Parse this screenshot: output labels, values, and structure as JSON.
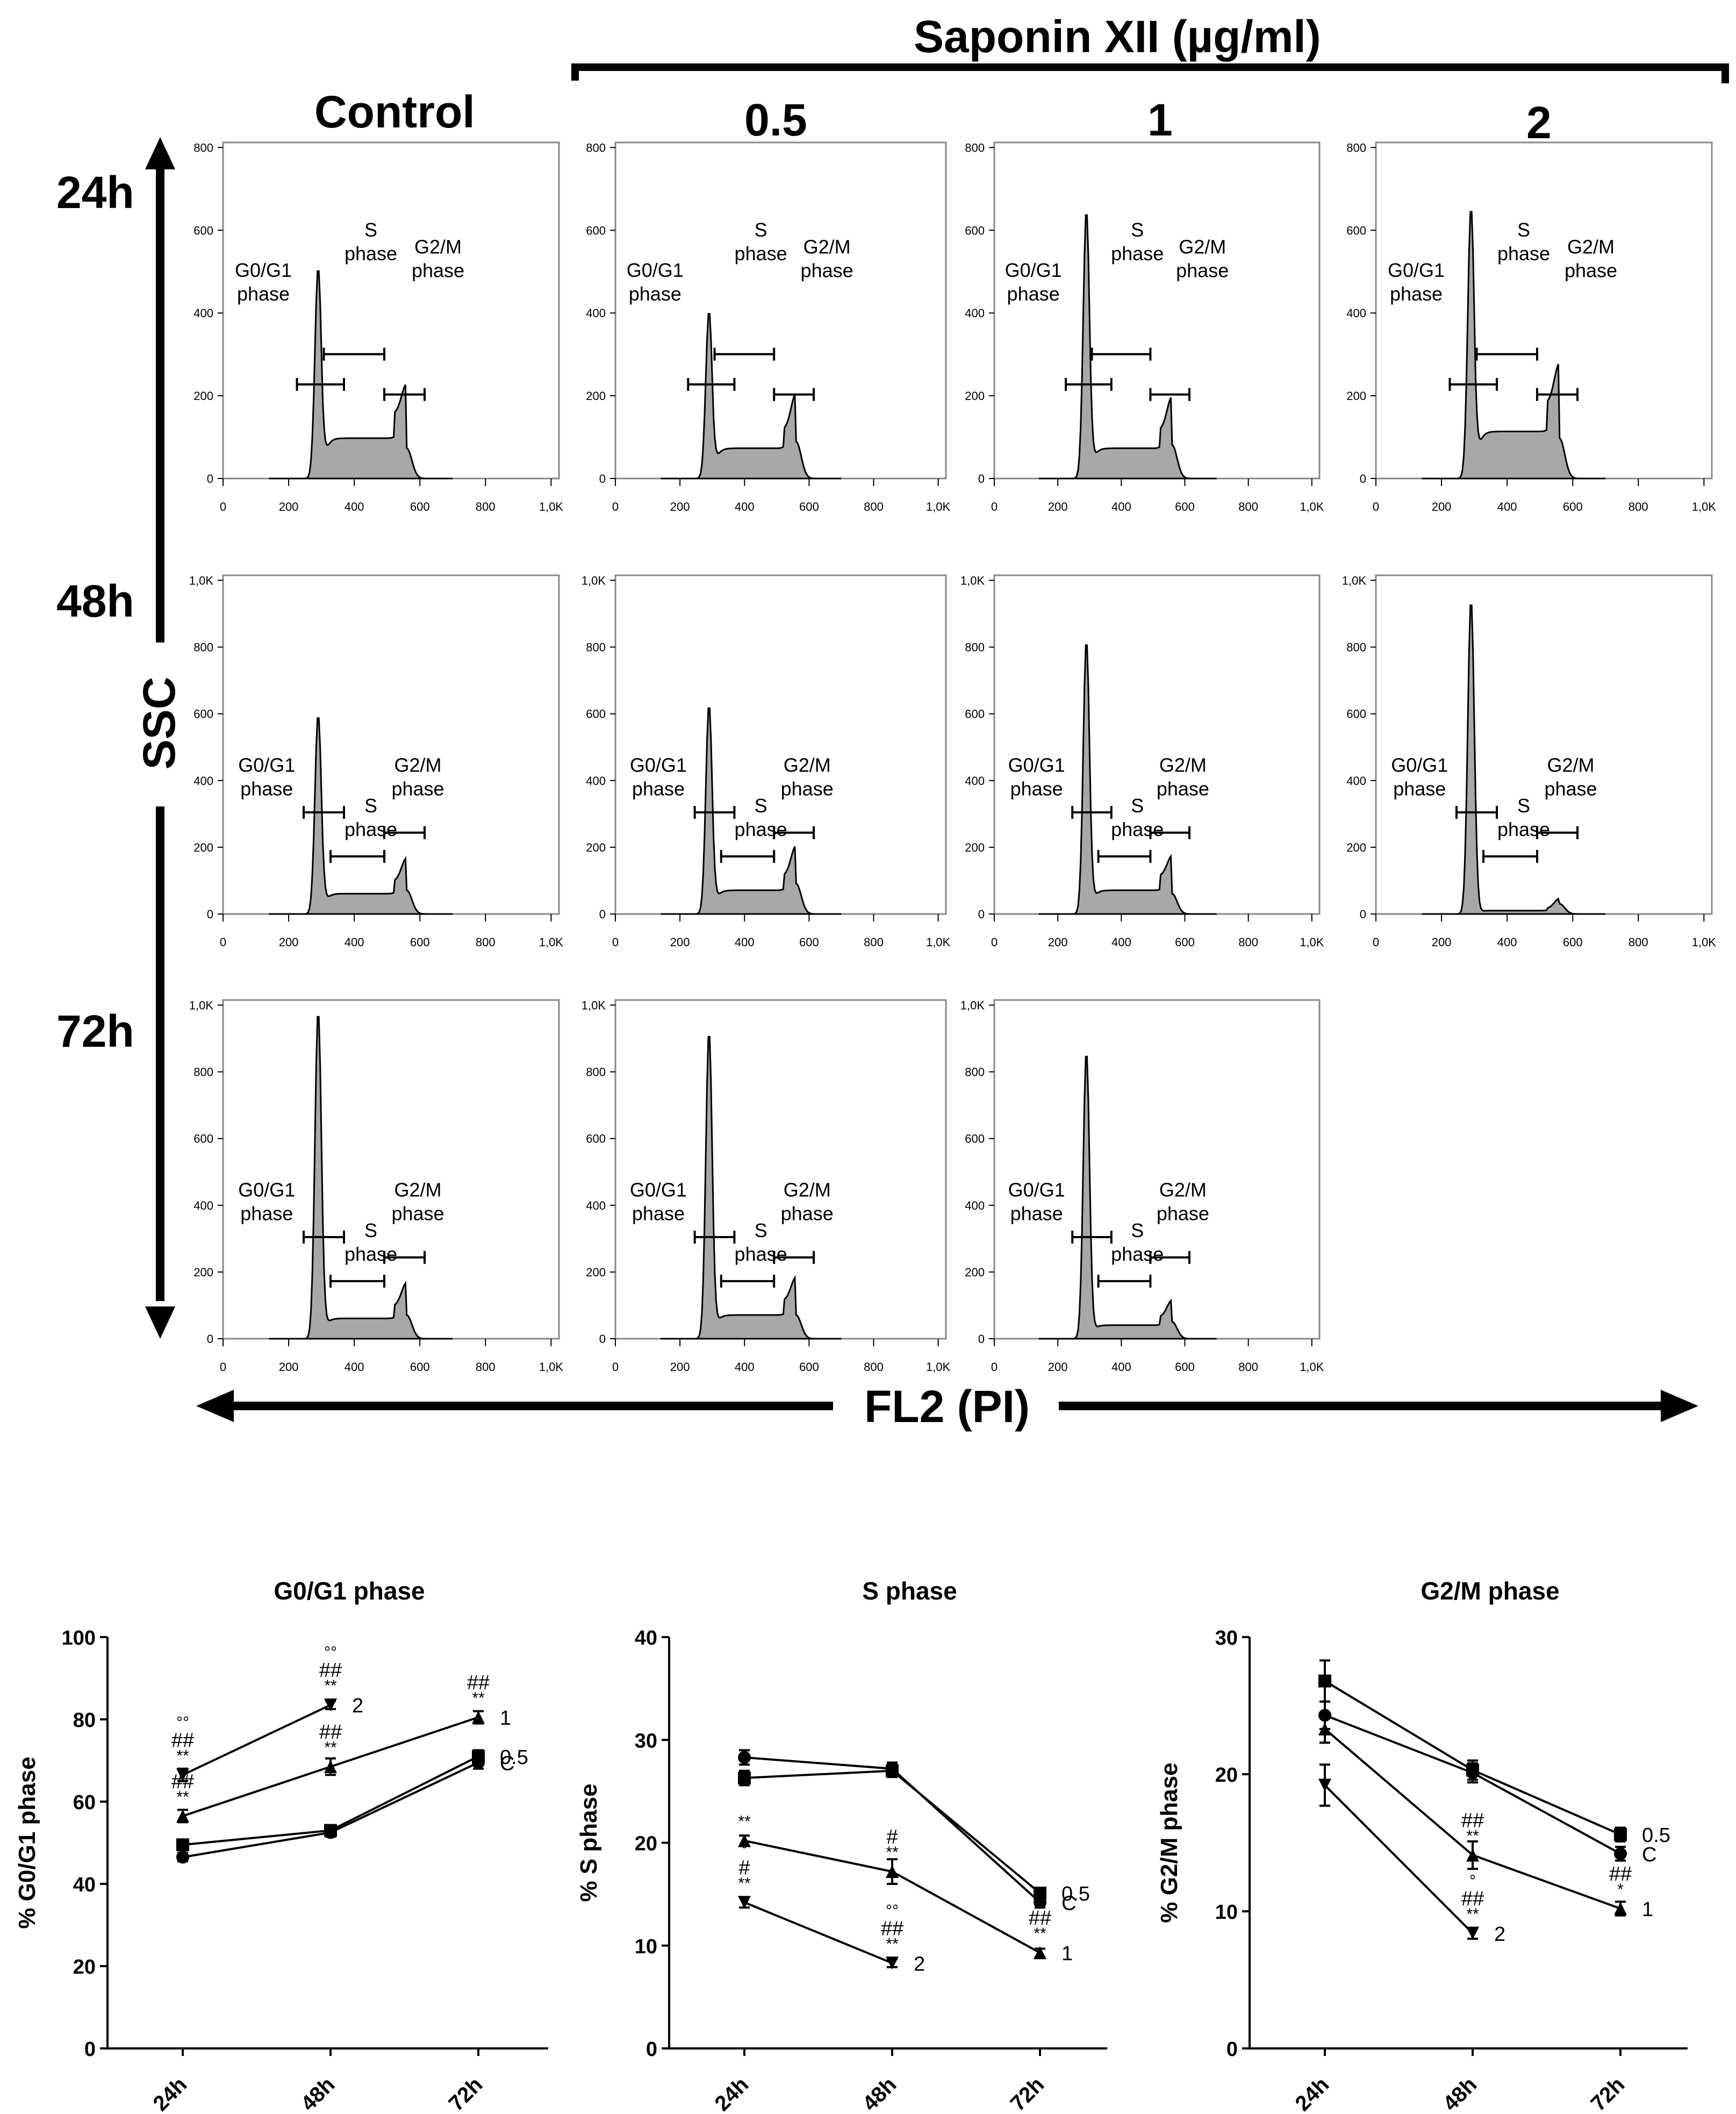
{
  "header": {
    "group_title": "Saponin XII (µg/ml)",
    "col_control": "Control",
    "col_05": "0.5",
    "col_1": "1",
    "col_2": "2"
  },
  "rows": {
    "r24": "24h",
    "r48": "48h",
    "r72": "72h"
  },
  "axes": {
    "y": "SSC",
    "x": "FL2 (PI)"
  },
  "histogram_labels": {
    "g0": "G0/G1",
    "s": "S",
    "g2": "G2/M",
    "phase": "phase"
  },
  "histogram_ticks": {
    "x": [
      "0",
      "200",
      "400",
      "600",
      "800",
      "1,0K"
    ],
    "y24": [
      "0",
      "200",
      "400",
      "600",
      "800"
    ],
    "y48": [
      "0",
      "200",
      "400",
      "600",
      "800",
      "1,0K"
    ]
  },
  "colors": {
    "hist_fill": "#a8a8a8",
    "line": "#000000"
  },
  "chart_data": [
    {
      "type": "line",
      "title": "G0/G1 phase",
      "xlabel": "",
      "ylabel": "% G0/G1 phase",
      "categories": [
        "24h",
        "48h",
        "72h"
      ],
      "ylim": [
        0,
        100
      ],
      "yticks": [
        "0",
        "20",
        "40",
        "60",
        "80",
        "100"
      ],
      "series": [
        {
          "name": "C",
          "marker": "circle",
          "values": [
            46.5,
            52.5,
            69.5
          ],
          "err": [
            1,
            1,
            1.5
          ]
        },
        {
          "name": "0.5",
          "marker": "square",
          "values": [
            49.5,
            53,
            71
          ],
          "err": [
            1,
            1,
            1.5
          ]
        },
        {
          "name": "1",
          "marker": "triangle-up",
          "values": [
            56.5,
            68.5,
            80.5
          ],
          "err": [
            1.5,
            2,
            1.5
          ]
        },
        {
          "name": "2",
          "marker": "triangle-down",
          "values": [
            66.5,
            83.5,
            null
          ],
          "err": [
            1.5,
            1,
            0
          ]
        }
      ],
      "annotations": [
        {
          "x": "24h",
          "y": 56.5,
          "text": "##",
          "sub": "**"
        },
        {
          "x": "24h",
          "y": 66.5,
          "text": "##",
          "sub": "**",
          "top": "°°"
        },
        {
          "x": "48h",
          "y": 68.5,
          "text": "##",
          "sub": "**"
        },
        {
          "x": "48h",
          "y": 83.5,
          "text": "##",
          "sub": "**",
          "top": "°°"
        },
        {
          "x": "72h",
          "y": 80.5,
          "text": "##",
          "sub": "**"
        }
      ]
    },
    {
      "type": "line",
      "title": "S phase",
      "xlabel": "",
      "ylabel": "% S phase",
      "categories": [
        "24h",
        "48h",
        "72h"
      ],
      "ylim": [
        0,
        40
      ],
      "yticks": [
        "0",
        "10",
        "20",
        "30",
        "40"
      ],
      "series": [
        {
          "name": "C",
          "marker": "circle",
          "values": [
            28.3,
            27.2,
            14.2
          ],
          "err": [
            0.7,
            0.6,
            0.5
          ]
        },
        {
          "name": "0.5",
          "marker": "square",
          "values": [
            26.3,
            27.0,
            15.1
          ],
          "err": [
            0.7,
            0.6,
            0.5
          ]
        },
        {
          "name": "1",
          "marker": "triangle-up",
          "values": [
            20.2,
            17.2,
            9.3
          ],
          "err": [
            0.5,
            1.2,
            0.4
          ]
        },
        {
          "name": "2",
          "marker": "triangle-down",
          "values": [
            14.2,
            8.3,
            null
          ],
          "err": [
            0.5,
            0.4,
            0
          ]
        }
      ],
      "annotations": [
        {
          "x": "24h",
          "y": 20.2,
          "text": "",
          "sub": "**"
        },
        {
          "x": "24h",
          "y": 14.2,
          "text": "#",
          "sub": "**",
          "top": "°"
        },
        {
          "x": "48h",
          "y": 17.2,
          "text": "#",
          "sub": "**"
        },
        {
          "x": "48h",
          "y": 8.3,
          "text": "##",
          "sub": "**",
          "top": "°°"
        },
        {
          "x": "72h",
          "y": 9.3,
          "text": "##",
          "sub": "**"
        }
      ]
    },
    {
      "type": "line",
      "title": "G2/M phase",
      "xlabel": "",
      "ylabel": "% G2/M phase",
      "categories": [
        "24h",
        "48h",
        "72h"
      ],
      "ylim": [
        0,
        30
      ],
      "yticks": [
        "0",
        "10",
        "20",
        "30"
      ],
      "series": [
        {
          "name": "C",
          "marker": "circle",
          "values": [
            24.3,
            20.1,
            14.2
          ],
          "err": [
            1,
            0.7,
            0.5
          ]
        },
        {
          "name": "0.5",
          "marker": "square",
          "values": [
            26.8,
            20.3,
            15.6
          ],
          "err": [
            1.5,
            0.7,
            0.5
          ]
        },
        {
          "name": "1",
          "marker": "triangle-up",
          "values": [
            23.3,
            14.1,
            10.2
          ],
          "err": [
            1,
            1,
            0.5
          ]
        },
        {
          "name": "2",
          "marker": "triangle-down",
          "values": [
            19.2,
            8.4,
            null
          ],
          "err": [
            1.5,
            0.4,
            0
          ]
        }
      ],
      "annotations": [
        {
          "x": "48h",
          "y": 14.1,
          "text": "##",
          "sub": "**"
        },
        {
          "x": "48h",
          "y": 8.4,
          "text": "##",
          "sub": "**",
          "top": "°"
        },
        {
          "x": "72h",
          "y": 10.2,
          "text": "##",
          "sub": "*"
        }
      ]
    }
  ]
}
